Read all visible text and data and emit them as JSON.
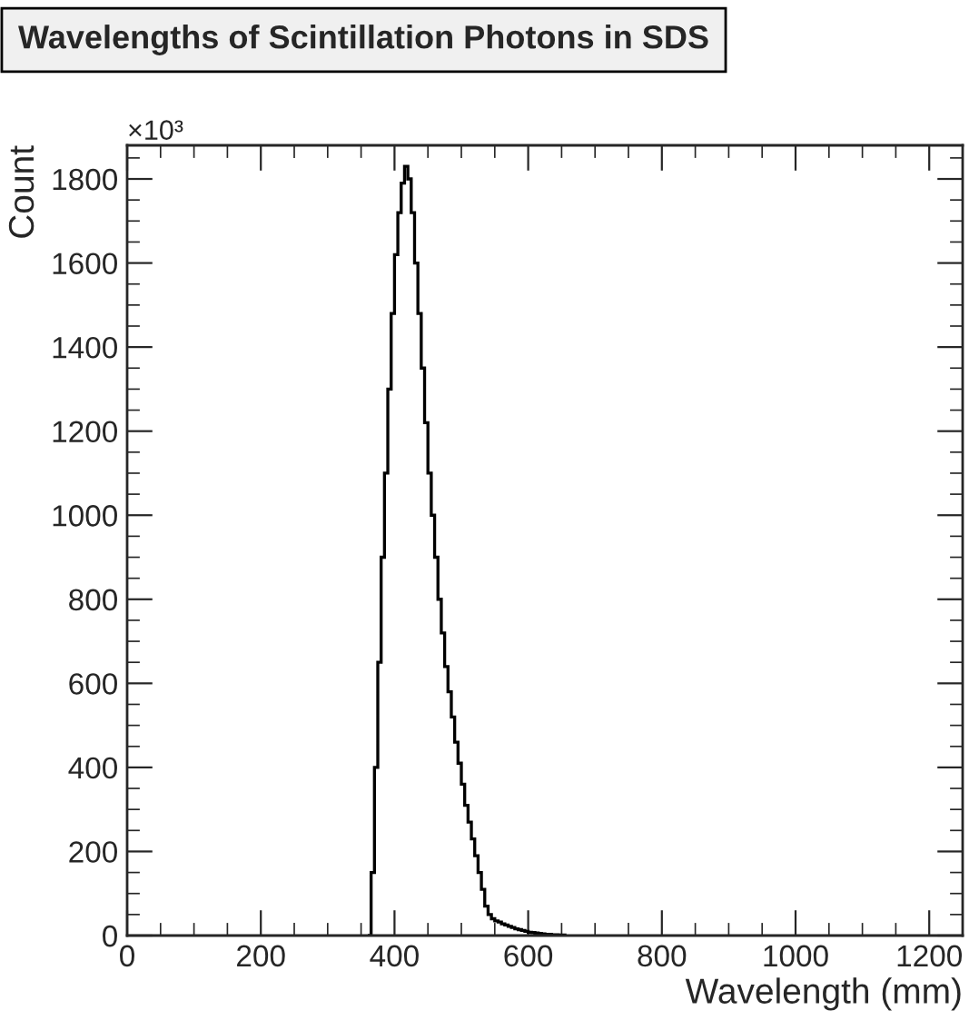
{
  "chart_data": {
    "type": "histogram",
    "title": "Wavelengths of Scintillation Photons in SDS",
    "xlabel": "Wavelength (mm)",
    "ylabel": "Count",
    "annotations": [
      "×10³"
    ],
    "bins": [
      360,
      365,
      370,
      375,
      380,
      385,
      390,
      395,
      400,
      405,
      410,
      415,
      420,
      425,
      430,
      435,
      440,
      445,
      450,
      455,
      460,
      465,
      470,
      475,
      480,
      485,
      490,
      495,
      500,
      505,
      510,
      515,
      520,
      525,
      530,
      535,
      540,
      545,
      550,
      555,
      560,
      565,
      570,
      575,
      580,
      585,
      590,
      595,
      600,
      605,
      610,
      615,
      620,
      625,
      630,
      635,
      640,
      645,
      650,
      655
    ],
    "values": [
      0,
      150,
      400,
      650,
      900,
      1100,
      1300,
      1480,
      1620,
      1720,
      1790,
      1830,
      1800,
      1720,
      1600,
      1480,
      1350,
      1220,
      1100,
      1000,
      900,
      800,
      720,
      640,
      580,
      520,
      460,
      410,
      360,
      310,
      270,
      230,
      190,
      150,
      110,
      70,
      50,
      40,
      35,
      32,
      28,
      25,
      22,
      19,
      16,
      14,
      12,
      10,
      8,
      7,
      6,
      5,
      4,
      3,
      3,
      2,
      2,
      1,
      1
    ],
    "color": "#000000",
    "xlim": [
      0,
      1250
    ],
    "ylim": [
      0,
      1880
    ],
    "xticks": [
      0,
      200,
      400,
      600,
      800,
      1000,
      1200
    ],
    "yticks": [
      0,
      200,
      400,
      600,
      800,
      1000,
      1200,
      1400,
      1600,
      1800
    ],
    "grid": false,
    "legend": false
  }
}
